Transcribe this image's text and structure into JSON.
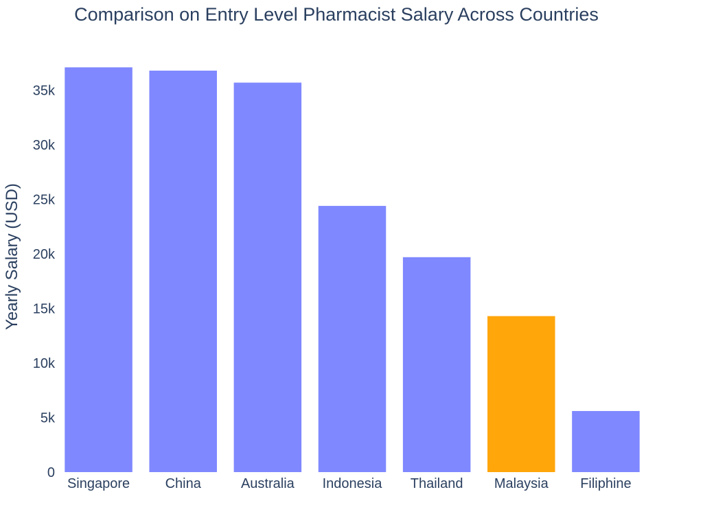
{
  "chart_data": {
    "type": "bar",
    "title": "Comparison on Entry Level Pharmacist Salary Across Countries",
    "xlabel": "",
    "ylabel": "Yearly Salary (USD)",
    "categories": [
      "Singapore",
      "China",
      "Australia",
      "Indonesia",
      "Thailand",
      "Malaysia",
      "Filiphine"
    ],
    "values": [
      37100,
      36800,
      35700,
      24400,
      19700,
      14300,
      5600
    ],
    "bar_colors": [
      "#7f88ff",
      "#7f88ff",
      "#7f88ff",
      "#7f88ff",
      "#7f88ff",
      "#ffa60a",
      "#7f88ff"
    ],
    "highlighted_category": "Malaysia",
    "ylim": [
      0,
      39500
    ],
    "y_ticks": [
      {
        "value": 0,
        "label": "0"
      },
      {
        "value": 5000,
        "label": "5k"
      },
      {
        "value": 10000,
        "label": "10k"
      },
      {
        "value": 15000,
        "label": "15k"
      },
      {
        "value": 20000,
        "label": "20k"
      },
      {
        "value": 25000,
        "label": "25k"
      },
      {
        "value": 30000,
        "label": "30k"
      },
      {
        "value": 35000,
        "label": "35k"
      }
    ],
    "grid": false,
    "legend": "none"
  },
  "colors": {
    "bar_default": "#7f88ff",
    "bar_highlight": "#ffa60a",
    "text": "#2a3f5f",
    "background": "#ffffff"
  }
}
